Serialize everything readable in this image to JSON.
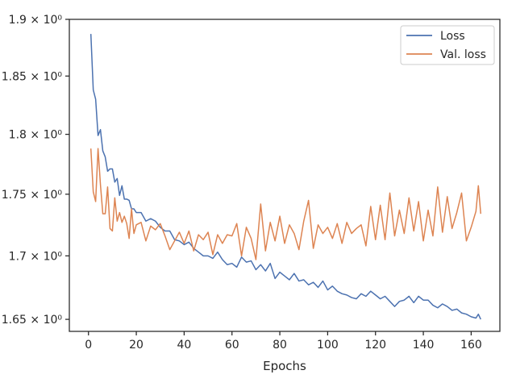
{
  "chart_data": {
    "type": "line",
    "title": "",
    "xlabel": "Epochs",
    "ylabel": "",
    "xlim": [
      -8,
      172
    ],
    "ylim": [
      1.6407,
      1.9
    ],
    "yscale": "log",
    "grid": false,
    "legend_position": "top-right",
    "x_ticks": [
      0,
      20,
      40,
      60,
      80,
      100,
      120,
      140,
      160
    ],
    "x_tick_labels": [
      "0",
      "20",
      "40",
      "60",
      "80",
      "100",
      "120",
      "140",
      "160"
    ],
    "y_ticks": [
      1.65,
      1.7,
      1.75,
      1.8,
      1.85,
      1.9
    ],
    "y_tick_labels": [
      "1.65 × 10⁰",
      "1.7 × 10⁰",
      "1.75 × 10⁰",
      "1.8 × 10⁰",
      "1.85 × 10⁰",
      "1.9 × 10⁰"
    ],
    "series": [
      {
        "name": "Loss",
        "color": "#4c72b0",
        "points": [
          [
            1,
            1.887
          ],
          [
            2,
            1.838
          ],
          [
            3,
            1.83
          ],
          [
            4,
            1.799
          ],
          [
            5,
            1.804
          ],
          [
            6,
            1.786
          ],
          [
            7,
            1.781
          ],
          [
            8,
            1.769
          ],
          [
            9,
            1.771
          ],
          [
            10,
            1.771
          ],
          [
            11,
            1.76
          ],
          [
            12,
            1.763
          ],
          [
            13,
            1.749
          ],
          [
            14,
            1.757
          ],
          [
            15,
            1.746
          ],
          [
            16,
            1.746
          ],
          [
            17,
            1.745
          ],
          [
            18,
            1.738
          ],
          [
            19,
            1.738
          ],
          [
            20,
            1.735
          ],
          [
            22,
            1.735
          ],
          [
            24,
            1.728
          ],
          [
            26,
            1.73
          ],
          [
            28,
            1.728
          ],
          [
            30,
            1.723
          ],
          [
            32,
            1.72
          ],
          [
            34,
            1.72
          ],
          [
            36,
            1.713
          ],
          [
            38,
            1.712
          ],
          [
            40,
            1.709
          ],
          [
            42,
            1.711
          ],
          [
            44,
            1.706
          ],
          [
            46,
            1.703
          ],
          [
            48,
            1.7
          ],
          [
            50,
            1.7
          ],
          [
            52,
            1.698
          ],
          [
            54,
            1.703
          ],
          [
            56,
            1.697
          ],
          [
            58,
            1.693
          ],
          [
            60,
            1.694
          ],
          [
            62,
            1.691
          ],
          [
            64,
            1.699
          ],
          [
            66,
            1.695
          ],
          [
            68,
            1.696
          ],
          [
            70,
            1.689
          ],
          [
            72,
            1.693
          ],
          [
            74,
            1.688
          ],
          [
            76,
            1.694
          ],
          [
            78,
            1.682
          ],
          [
            80,
            1.687
          ],
          [
            82,
            1.684
          ],
          [
            84,
            1.681
          ],
          [
            86,
            1.686
          ],
          [
            88,
            1.68
          ],
          [
            90,
            1.681
          ],
          [
            92,
            1.677
          ],
          [
            94,
            1.679
          ],
          [
            96,
            1.675
          ],
          [
            98,
            1.68
          ],
          [
            100,
            1.673
          ],
          [
            102,
            1.676
          ],
          [
            104,
            1.672
          ],
          [
            106,
            1.67
          ],
          [
            108,
            1.669
          ],
          [
            110,
            1.667
          ],
          [
            112,
            1.666
          ],
          [
            114,
            1.67
          ],
          [
            116,
            1.668
          ],
          [
            118,
            1.672
          ],
          [
            120,
            1.669
          ],
          [
            122,
            1.666
          ],
          [
            124,
            1.668
          ],
          [
            126,
            1.664
          ],
          [
            128,
            1.66
          ],
          [
            130,
            1.664
          ],
          [
            132,
            1.665
          ],
          [
            134,
            1.668
          ],
          [
            136,
            1.663
          ],
          [
            138,
            1.668
          ],
          [
            140,
            1.665
          ],
          [
            142,
            1.665
          ],
          [
            144,
            1.661
          ],
          [
            146,
            1.659
          ],
          [
            148,
            1.662
          ],
          [
            150,
            1.66
          ],
          [
            152,
            1.657
          ],
          [
            154,
            1.658
          ],
          [
            156,
            1.655
          ],
          [
            158,
            1.654
          ],
          [
            160,
            1.652
          ],
          [
            162,
            1.651
          ],
          [
            163,
            1.654
          ],
          [
            164,
            1.65
          ]
        ]
      },
      {
        "name": "Val. loss",
        "color": "#dd8452",
        "points": [
          [
            1,
            1.788
          ],
          [
            2,
            1.752
          ],
          [
            3,
            1.744
          ],
          [
            4,
            1.788
          ],
          [
            5,
            1.758
          ],
          [
            6,
            1.734
          ],
          [
            7,
            1.734
          ],
          [
            8,
            1.756
          ],
          [
            9,
            1.722
          ],
          [
            10,
            1.72
          ],
          [
            11,
            1.747
          ],
          [
            12,
            1.728
          ],
          [
            13,
            1.735
          ],
          [
            14,
            1.727
          ],
          [
            15,
            1.732
          ],
          [
            16,
            1.726
          ],
          [
            17,
            1.714
          ],
          [
            18,
            1.738
          ],
          [
            19,
            1.718
          ],
          [
            20,
            1.725
          ],
          [
            22,
            1.727
          ],
          [
            24,
            1.712
          ],
          [
            26,
            1.724
          ],
          [
            28,
            1.721
          ],
          [
            30,
            1.726
          ],
          [
            32,
            1.716
          ],
          [
            34,
            1.705
          ],
          [
            36,
            1.712
          ],
          [
            38,
            1.719
          ],
          [
            40,
            1.71
          ],
          [
            42,
            1.72
          ],
          [
            44,
            1.704
          ],
          [
            46,
            1.717
          ],
          [
            48,
            1.713
          ],
          [
            50,
            1.719
          ],
          [
            52,
            1.701
          ],
          [
            54,
            1.717
          ],
          [
            56,
            1.71
          ],
          [
            58,
            1.717
          ],
          [
            60,
            1.716
          ],
          [
            62,
            1.726
          ],
          [
            64,
            1.7
          ],
          [
            66,
            1.723
          ],
          [
            68,
            1.714
          ],
          [
            70,
            1.697
          ],
          [
            72,
            1.742
          ],
          [
            74,
            1.704
          ],
          [
            76,
            1.727
          ],
          [
            78,
            1.712
          ],
          [
            80,
            1.732
          ],
          [
            82,
            1.71
          ],
          [
            84,
            1.725
          ],
          [
            86,
            1.718
          ],
          [
            88,
            1.705
          ],
          [
            90,
            1.728
          ],
          [
            92,
            1.745
          ],
          [
            94,
            1.706
          ],
          [
            96,
            1.725
          ],
          [
            98,
            1.718
          ],
          [
            100,
            1.723
          ],
          [
            102,
            1.714
          ],
          [
            104,
            1.726
          ],
          [
            106,
            1.71
          ],
          [
            108,
            1.727
          ],
          [
            110,
            1.718
          ],
          [
            112,
            1.722
          ],
          [
            114,
            1.725
          ],
          [
            116,
            1.708
          ],
          [
            118,
            1.74
          ],
          [
            120,
            1.713
          ],
          [
            122,
            1.741
          ],
          [
            124,
            1.713
          ],
          [
            126,
            1.751
          ],
          [
            128,
            1.716
          ],
          [
            130,
            1.737
          ],
          [
            132,
            1.718
          ],
          [
            134,
            1.747
          ],
          [
            136,
            1.72
          ],
          [
            138,
            1.744
          ],
          [
            140,
            1.712
          ],
          [
            142,
            1.737
          ],
          [
            144,
            1.716
          ],
          [
            146,
            1.756
          ],
          [
            148,
            1.719
          ],
          [
            150,
            1.748
          ],
          [
            152,
            1.722
          ],
          [
            154,
            1.735
          ],
          [
            156,
            1.751
          ],
          [
            158,
            1.712
          ],
          [
            160,
            1.723
          ],
          [
            162,
            1.736
          ],
          [
            163,
            1.757
          ],
          [
            164,
            1.734
          ]
        ]
      }
    ]
  }
}
